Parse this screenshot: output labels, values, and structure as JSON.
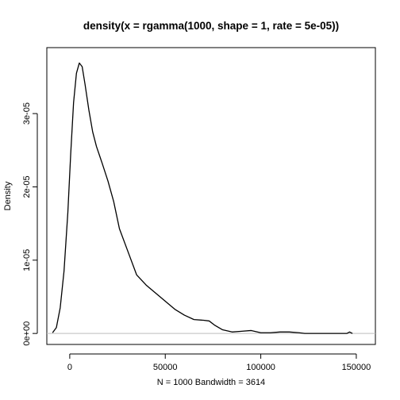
{
  "chart_data": {
    "type": "line",
    "title": "density(x = rgamma(1000, shape = 1, rate = 5e-05))",
    "xlabel": "N = 1000   Bandwidth = 3614",
    "ylabel": "Density",
    "xlim": [
      -12000,
      160000
    ],
    "ylim": [
      -1.5e-06,
      3.9e-05
    ],
    "x_ticks": [
      0,
      50000,
      100000,
      150000
    ],
    "x_tick_labels": [
      "0",
      "50000",
      "100000",
      "150000"
    ],
    "y_ticks": [
      0,
      1e-05,
      2e-05,
      3e-05
    ],
    "y_tick_labels": [
      "0e+00",
      "1e-05",
      "2e-05",
      "3e-05"
    ],
    "baseline_color": "#bebebe",
    "line_color": "#000000",
    "grid": false,
    "series": [
      {
        "x": [
          -9000,
          -7000,
          -5000,
          -3000,
          -1000,
          500,
          2000,
          3500,
          5000,
          6500,
          8000,
          10000,
          12000,
          14000,
          17000,
          20000,
          23000,
          26000,
          30000,
          35000,
          40000,
          45000,
          50000,
          55000,
          60000,
          65000,
          70000,
          73000,
          76000,
          80000,
          85000,
          90000,
          95000,
          100000,
          105000,
          110000,
          115000,
          120000,
          123000,
          145000,
          146500,
          148000
        ],
        "y": [
          1e-07,
          8e-07,
          3.5e-06,
          8.5e-06,
          1.65e-05,
          2.45e-05,
          3.15e-05,
          3.55e-05,
          3.69e-05,
          3.64e-05,
          3.4e-05,
          3.05e-05,
          2.75e-05,
          2.55e-05,
          2.32e-05,
          2.08e-05,
          1.8e-05,
          1.43e-05,
          1.15e-05,
          8e-06,
          6.6e-06,
          5.5e-06,
          4.4e-06,
          3.3e-06,
          2.5e-06,
          1.9e-06,
          1.8e-06,
          1.7e-06,
          1.1e-06,
          5e-07,
          2e-07,
          3e-07,
          4e-07,
          1e-07,
          1e-07,
          2e-07,
          2e-07,
          1e-07,
          0.0,
          0.0,
          2e-07,
          0.0
        ]
      }
    ]
  }
}
